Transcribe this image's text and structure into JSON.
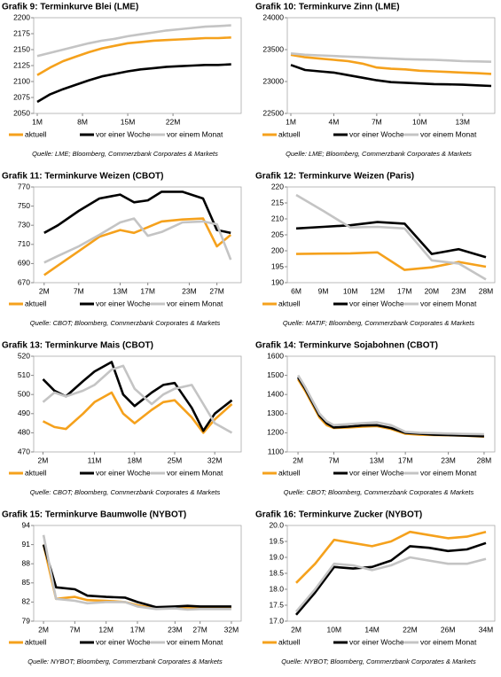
{
  "chart_data": [
    {
      "type": "line",
      "title": "Grafik 9: Terminkurve Blei (LME)",
      "source": "Quelle: LME; Bloomberg, Commerzbank Corporates & Markets",
      "x": [
        1,
        3,
        5,
        7,
        9,
        11,
        13,
        15,
        17,
        19,
        21,
        23,
        25,
        27,
        29,
        31
      ],
      "xlim": [
        1,
        32
      ],
      "xticks": [
        {
          "value": 1,
          "label": "1M"
        },
        {
          "value": 8,
          "label": "8M"
        },
        {
          "value": 15,
          "label": "15M"
        },
        {
          "value": 22,
          "label": "22M"
        }
      ],
      "ylim": [
        2050,
        2200
      ],
      "yticks": [
        2050,
        2075,
        2100,
        2125,
        2150,
        2175,
        2200
      ],
      "series": [
        {
          "name": "aktuell",
          "color": "#f5a11c",
          "values": [
            2110,
            2122,
            2132,
            2139,
            2146,
            2152,
            2156,
            2160,
            2162,
            2164,
            2165,
            2166,
            2167,
            2168,
            2168,
            2169
          ]
        },
        {
          "name": "vor einer Woche",
          "color": "#000000",
          "values": [
            2068,
            2080,
            2088,
            2095,
            2102,
            2108,
            2112,
            2116,
            2119,
            2121,
            2123,
            2124,
            2125,
            2126,
            2126,
            2127
          ]
        },
        {
          "name": "vor einem Monat",
          "color": "#c4c4c4",
          "values": [
            2140,
            2145,
            2150,
            2155,
            2160,
            2164,
            2167,
            2171,
            2174,
            2177,
            2180,
            2182,
            2184,
            2186,
            2187,
            2188
          ]
        }
      ]
    },
    {
      "type": "line",
      "title": "Grafik 10: Terminkurve Zinn (LME)",
      "source": "Quelle: LME; Bloomberg, Commerzbank Corporates & Markets",
      "x": [
        1,
        2,
        3,
        4,
        5,
        6,
        7,
        8,
        9,
        10,
        11,
        12,
        13,
        14,
        15
      ],
      "xlim": [
        1,
        15
      ],
      "xticks": [
        {
          "value": 1,
          "label": "1M"
        },
        {
          "value": 4,
          "label": "4M"
        },
        {
          "value": 7,
          "label": "7M"
        },
        {
          "value": 10,
          "label": "10M"
        },
        {
          "value": 13,
          "label": "13M"
        }
      ],
      "ylim": [
        22500,
        24000
      ],
      "yticks": [
        22500,
        23000,
        23500,
        24000
      ],
      "series": [
        {
          "name": "aktuell",
          "color": "#f5a11c",
          "values": [
            23420,
            23380,
            23360,
            23340,
            23320,
            23280,
            23220,
            23200,
            23190,
            23170,
            23160,
            23150,
            23140,
            23130,
            23120
          ]
        },
        {
          "name": "vor einer Woche",
          "color": "#000000",
          "values": [
            23260,
            23180,
            23160,
            23140,
            23100,
            23060,
            23020,
            22990,
            22980,
            22970,
            22960,
            22955,
            22950,
            22940,
            22930
          ]
        },
        {
          "name": "vor einem Monat",
          "color": "#c4c4c4",
          "values": [
            23440,
            23420,
            23410,
            23400,
            23390,
            23380,
            23370,
            23360,
            23350,
            23345,
            23340,
            23330,
            23320,
            23315,
            23310
          ]
        }
      ]
    },
    {
      "type": "line",
      "title": "Grafik 11: Terminkurve Weizen (CBOT)",
      "source": "Quelle: CBOT; Bloomberg, Commerzbank Corporates & Markets",
      "x": [
        2,
        4,
        7,
        10,
        13,
        15,
        17,
        19,
        22,
        25,
        27,
        29
      ],
      "xlim": [
        1,
        30
      ],
      "xticks": [
        {
          "value": 2,
          "label": "2M"
        },
        {
          "value": 7,
          "label": "7M"
        },
        {
          "value": 13,
          "label": "13M"
        },
        {
          "value": 17,
          "label": "17M"
        },
        {
          "value": 23,
          "label": "23M"
        },
        {
          "value": 27,
          "label": "27M"
        }
      ],
      "ylim": [
        670,
        770
      ],
      "yticks": [
        670,
        690,
        710,
        730,
        750,
        770
      ],
      "series": [
        {
          "name": "aktuell",
          "color": "#f5a11c",
          "values": [
            678,
            688,
            703,
            718,
            725,
            722,
            728,
            734,
            736,
            737,
            708,
            720
          ]
        },
        {
          "name": "vor einer Woche",
          "color": "#000000",
          "values": [
            722,
            730,
            745,
            758,
            762,
            754,
            756,
            765,
            765,
            758,
            725,
            722
          ]
        },
        {
          "name": "vor einem Monat",
          "color": "#c4c4c4",
          "values": [
            691,
            698,
            708,
            720,
            733,
            737,
            719,
            723,
            733,
            734,
            731,
            694
          ]
        }
      ]
    },
    {
      "type": "line",
      "title": "Grafik 12: Terminkurve Weizen (Paris)",
      "source": "Quelle: MATIF; Bloomberg, Commerzbank Corporates & Markets",
      "categories": [
        "6M",
        "9M",
        "10M",
        "12M",
        "17M",
        "20M",
        "23M",
        "28M"
      ],
      "ylim": [
        190,
        220
      ],
      "yticks": [
        190,
        195,
        200,
        205,
        210,
        215,
        220
      ],
      "series": [
        {
          "name": "aktuell",
          "color": "#f5a11c",
          "values": [
            199,
            199.1,
            199.2,
            199.5,
            194,
            194.8,
            196.5,
            195
          ]
        },
        {
          "name": "vor einer Woche",
          "color": "#000000",
          "values": [
            207,
            207.5,
            208,
            209,
            208.5,
            199,
            200.5,
            198
          ]
        },
        {
          "name": "vor einem Monat",
          "color": "#c4c4c4",
          "values": [
            217.5,
            212.5,
            207.3,
            207.5,
            207,
            197,
            196,
            191
          ]
        }
      ]
    },
    {
      "type": "line",
      "title": "Grafik 13: Terminkurve Mais (CBOT)",
      "source": "Quelle: CBOT; Bloomberg, Commerzbank Corporates & Markets",
      "x": [
        2,
        4,
        6,
        9,
        11,
        14,
        16,
        18,
        21,
        23,
        25,
        28,
        30,
        32,
        35
      ],
      "xlim": [
        1,
        36
      ],
      "xticks": [
        {
          "value": 2,
          "label": "2M"
        },
        {
          "value": 11,
          "label": "11M"
        },
        {
          "value": 18,
          "label": "18M"
        },
        {
          "value": 25,
          "label": "25M"
        },
        {
          "value": 32,
          "label": "32M"
        }
      ],
      "ylim": [
        470,
        520
      ],
      "yticks": [
        470,
        480,
        490,
        500,
        510,
        520
      ],
      "series": [
        {
          "name": "aktuell",
          "color": "#f5a11c",
          "values": [
            486,
            483,
            482,
            490,
            496,
            501,
            490,
            485,
            492,
            496,
            497,
            488,
            480,
            487,
            495
          ]
        },
        {
          "name": "vor einer Woche",
          "color": "#000000",
          "values": [
            508,
            502,
            499,
            507,
            512,
            517,
            500,
            494,
            501,
            505,
            506,
            493,
            481,
            490,
            497
          ]
        },
        {
          "name": "vor einem Monat",
          "color": "#c4c4c4",
          "values": [
            496,
            501,
            499,
            502,
            505,
            513,
            515,
            503,
            495,
            500,
            503,
            505,
            495,
            485,
            480
          ]
        }
      ]
    },
    {
      "type": "line",
      "title": "Grafik 14: Terminkurve Sojabohnen (CBOT)",
      "source": "Quelle: CBOT; Bloomberg, Commerzbank Corporates & Markets",
      "x": [
        2,
        3,
        4,
        5,
        6,
        7,
        9,
        11,
        13,
        15,
        17,
        19,
        21,
        23,
        25,
        28
      ],
      "xlim": [
        1,
        29
      ],
      "xticks": [
        {
          "value": 2,
          "label": "2M"
        },
        {
          "value": 7,
          "label": "7M"
        },
        {
          "value": 13,
          "label": "13M"
        },
        {
          "value": 17,
          "label": "17M"
        },
        {
          "value": 23,
          "label": "23M"
        },
        {
          "value": 28,
          "label": "28M"
        }
      ],
      "ylim": [
        1100,
        1600
      ],
      "yticks": [
        1100,
        1200,
        1300,
        1400,
        1500,
        1600
      ],
      "series": [
        {
          "name": "aktuell",
          "color": "#f5a11c",
          "values": [
            1480,
            1420,
            1350,
            1280,
            1240,
            1225,
            1228,
            1232,
            1235,
            1220,
            1195,
            1190,
            1188,
            1187,
            1185,
            1180
          ]
        },
        {
          "name": "vor einer Woche",
          "color": "#000000",
          "values": [
            1490,
            1430,
            1360,
            1290,
            1250,
            1228,
            1232,
            1238,
            1240,
            1225,
            1200,
            1195,
            1190,
            1188,
            1186,
            1182
          ]
        },
        {
          "name": "vor einem Monat",
          "color": "#c4c4c4",
          "values": [
            1500,
            1440,
            1370,
            1300,
            1260,
            1240,
            1245,
            1250,
            1255,
            1240,
            1205,
            1200,
            1198,
            1196,
            1194,
            1192
          ]
        }
      ]
    },
    {
      "type": "line",
      "title": "Grafik 15: Terminkurve Baumwolle (NYBOT)",
      "source": "Quelle: NYBOT; Bloomberg, Commerzbank Corporates & Markets",
      "x": [
        2,
        4,
        7,
        9,
        12,
        15,
        17,
        20,
        23,
        25,
        27,
        30,
        32
      ],
      "xlim": [
        1,
        33
      ],
      "xticks": [
        {
          "value": 2,
          "label": "2M"
        },
        {
          "value": 7,
          "label": "7M"
        },
        {
          "value": 12,
          "label": "12M"
        },
        {
          "value": 17,
          "label": "17M"
        },
        {
          "value": 23,
          "label": "23M"
        },
        {
          "value": 27,
          "label": "27M"
        },
        {
          "value": 32,
          "label": "32M"
        }
      ],
      "ylim": [
        79,
        94
      ],
      "yticks": [
        79,
        82,
        85,
        88,
        91,
        94
      ],
      "series": [
        {
          "name": "aktuell",
          "color": "#f5a11c",
          "values": [
            91,
            82.5,
            82.8,
            82.3,
            82.2,
            82.0,
            81.5,
            81.0,
            81.0,
            81.2,
            81.0,
            81.0,
            81.0
          ]
        },
        {
          "name": "vor einer Woche",
          "color": "#000000",
          "values": [
            91,
            84.3,
            84,
            83,
            82.8,
            82.7,
            82,
            81.2,
            81.3,
            81.4,
            81.3,
            81.3,
            81.3
          ]
        },
        {
          "name": "vor einem Monat",
          "color": "#c4c4c4",
          "values": [
            92.5,
            82.5,
            82.2,
            81.8,
            82,
            82,
            81.3,
            80.9,
            81,
            80.8,
            80.9,
            80.9,
            80.9
          ]
        }
      ]
    },
    {
      "type": "line",
      "title": "Grafik 16: Terminkurve Zucker (NYBOT)",
      "source": "Quelle: NYBOT; Bloomberg, Commerzbank Corporates & Markets",
      "categories": [
        "2M",
        null,
        "10M",
        null,
        "14M",
        null,
        "22M",
        null,
        "26M",
        null,
        "34M"
      ],
      "ylim": [
        17,
        20
      ],
      "yticks": [
        {
          "value": 17,
          "label": "17.0"
        },
        {
          "value": 17.5,
          "label": "17.5"
        },
        {
          "value": 18,
          "label": "18.0"
        },
        {
          "value": 18.5,
          "label": "18.5"
        },
        {
          "value": 19,
          "label": "19.0"
        },
        {
          "value": 19.5,
          "label": "19.5"
        },
        {
          "value": 20,
          "label": "20.0"
        }
      ],
      "series": [
        {
          "name": "aktuell",
          "color": "#f5a11c",
          "values": [
            18.2,
            18.8,
            19.55,
            19.45,
            19.35,
            19.5,
            19.8,
            19.7,
            19.6,
            19.65,
            19.8
          ]
        },
        {
          "name": "vor einer Woche",
          "color": "#000000",
          "values": [
            17.2,
            17.9,
            18.7,
            18.65,
            18.7,
            18.9,
            19.35,
            19.3,
            19.2,
            19.25,
            19.45
          ]
        },
        {
          "name": "vor einem Monat",
          "color": "#c4c4c4",
          "values": [
            17.3,
            18.0,
            18.8,
            18.75,
            18.6,
            18.75,
            19.0,
            18.9,
            18.8,
            18.8,
            18.95
          ]
        }
      ]
    }
  ]
}
